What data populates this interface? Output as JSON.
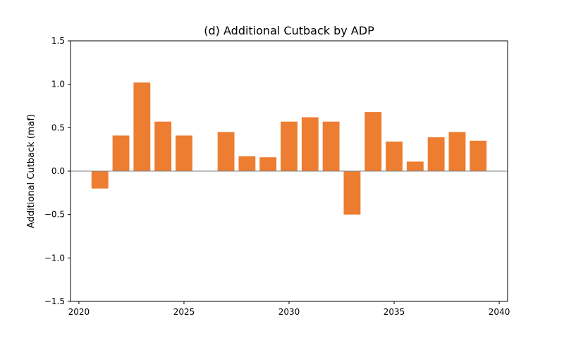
{
  "chart_data": {
    "type": "bar",
    "title": "(d) Additional Cutback by ADP",
    "xlabel": "",
    "ylabel": "Additional Cutback (maf)",
    "xlim": [
      2019.6,
      2040.4
    ],
    "ylim": [
      -1.5,
      1.5
    ],
    "x_ticks": [
      2020,
      2025,
      2030,
      2035,
      2040
    ],
    "x_tick_labels": [
      "2020",
      "2025",
      "2030",
      "2035",
      "2040"
    ],
    "y_ticks": [
      -1.5,
      -1.0,
      -0.5,
      0.0,
      0.5,
      1.0,
      1.5
    ],
    "y_tick_labels": [
      "−1.5",
      "−1.0",
      "−0.5",
      "0.0",
      "0.5",
      "1.0",
      "1.5"
    ],
    "grid": false,
    "legend": "none",
    "bar_color": "#ed7d31",
    "baseline_color": "#808080",
    "series": [
      {
        "x": [
          2021,
          2022,
          2023,
          2024,
          2025,
          2026,
          2027,
          2028,
          2029,
          2030,
          2031,
          2032,
          2033,
          2034,
          2035,
          2036,
          2037,
          2038,
          2039
        ],
        "values": [
          -0.2,
          0.41,
          1.02,
          0.57,
          0.41,
          0.0,
          0.45,
          0.17,
          0.16,
          0.57,
          0.62,
          0.57,
          -0.5,
          0.68,
          0.34,
          0.11,
          0.39,
          0.45,
          0.35
        ]
      }
    ]
  }
}
